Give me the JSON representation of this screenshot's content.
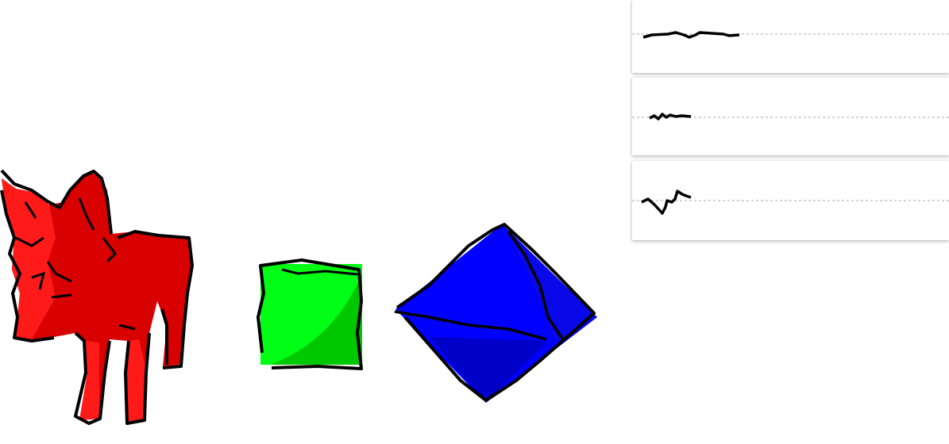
{
  "scene": {
    "background": "#ffffff",
    "objects": [
      {
        "name": "cat",
        "color": "#e00000",
        "shade": "#c40000"
      },
      {
        "name": "cube",
        "color": "#00ff00",
        "shade": "#00c800"
      },
      {
        "name": "octahedron",
        "color": "#0000ff",
        "shade": "#0000c8"
      }
    ],
    "outline_color": "#000000"
  },
  "graph_panels": [
    {
      "name": "graph-panel-1",
      "baseline_color": "#aaaaaa",
      "trace_color": "#000000"
    },
    {
      "name": "graph-panel-2",
      "baseline_color": "#aaaaaa",
      "trace_color": "#000000"
    },
    {
      "name": "graph-panel-3",
      "baseline_color": "#aaaaaa",
      "trace_color": "#000000"
    }
  ]
}
